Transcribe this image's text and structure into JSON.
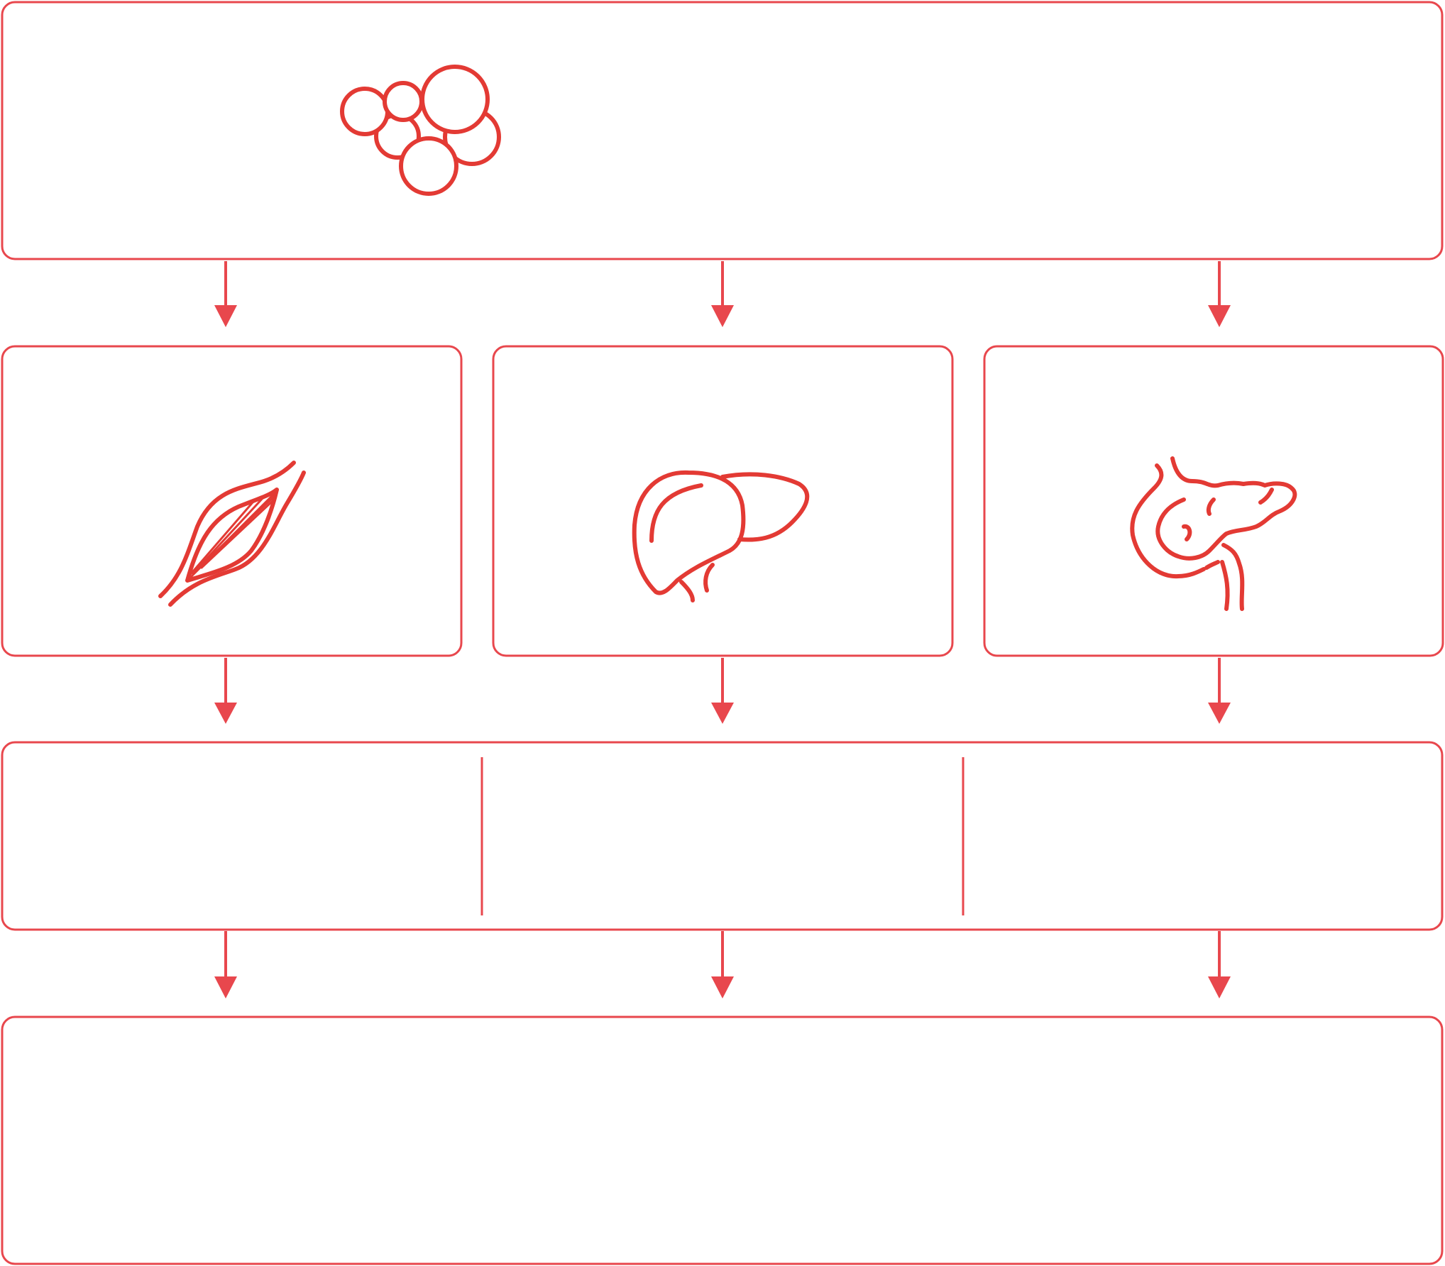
{
  "diagram": {
    "colors": {
      "stroke": "#e8474d",
      "icon": "#e33a34",
      "background": "#ffffff"
    },
    "top_panel": {
      "icon": "fat-cells-icon"
    },
    "organ_panels": [
      {
        "icon": "muscle-icon"
      },
      {
        "icon": "liver-icon"
      },
      {
        "icon": "pancreas-icon"
      }
    ],
    "effect_panel": {
      "columns": 3
    },
    "outcome_panel": {}
  }
}
